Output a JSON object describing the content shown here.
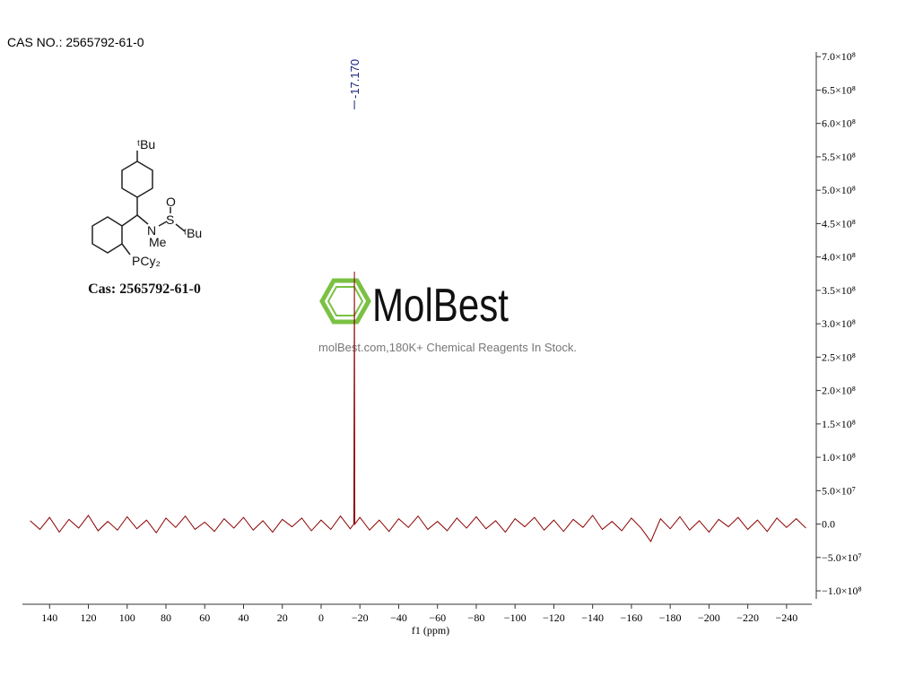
{
  "header": "CAS NO.: 2565792-61-0",
  "watermark": {
    "brand": "MolBest",
    "tagline": "molBest.com,180K+ Chemical Reagents In Stock."
  },
  "structure": {
    "labels": [
      "ᵗBu",
      "O",
      "S",
      "N",
      "Me",
      "ᵗBu",
      "PCy₂"
    ],
    "caption": "Cas: 2565792-61-0"
  },
  "chart_data": {
    "type": "line",
    "x_label": "f1 (ppm)",
    "annotations": [
      {
        "x": -17.17,
        "text": "-17.170"
      }
    ],
    "x": [
      150,
      145,
      140,
      135,
      130,
      125,
      120,
      115,
      110,
      105,
      100,
      95,
      90,
      85,
      80,
      75,
      70,
      65,
      60,
      55,
      50,
      45,
      40,
      35,
      30,
      25,
      20,
      15,
      10,
      5,
      0,
      -5,
      -10,
      -15,
      -16.9,
      -17.17,
      -17.4,
      -20,
      -25,
      -30,
      -35,
      -40,
      -45,
      -50,
      -55,
      -60,
      -65,
      -70,
      -75,
      -80,
      -85,
      -90,
      -95,
      -100,
      -105,
      -110,
      -115,
      -120,
      -125,
      -130,
      -135,
      -140,
      -145,
      -150,
      -155,
      -160,
      -165,
      -170,
      -175,
      -180,
      -185,
      -190,
      -195,
      -200,
      -205,
      -210,
      -215,
      -220,
      -225,
      -230,
      -235,
      -240,
      -245,
      -250
    ],
    "series": [
      {
        "color": "#8b0000",
        "values": [
          5000000.0,
          -8000000.0,
          10000000.0,
          -12000000.0,
          7000000.0,
          -6000000.0,
          13000000.0,
          -10000000.0,
          4000000.0,
          -9000000.0,
          11000000.0,
          -7000000.0,
          6000000.0,
          -13000000.0,
          9000000.0,
          -5000000.0,
          12000000.0,
          -8000000.0,
          3000000.0,
          -11000000.0,
          8000000.0,
          -6000000.0,
          10000000.0,
          -9000000.0,
          5000000.0,
          -12000000.0,
          7000000.0,
          -4000000.0,
          9000000.0,
          -10000000.0,
          6000000.0,
          -8000000.0,
          12000000.0,
          -7000000.0,
          0,
          378000000.0,
          0,
          10000000.0,
          -9000000.0,
          6000000.0,
          -11000000.0,
          8000000.0,
          -5000000.0,
          12000000.0,
          -8000000.0,
          4000000.0,
          -10000000.0,
          9000000.0,
          -6000000.0,
          11000000.0,
          -7000000.0,
          5000000.0,
          -12000000.0,
          8000000.0,
          -4000000.0,
          10000000.0,
          -9000000.0,
          6000000.0,
          -11000000.0,
          7000000.0,
          -5000000.0,
          13000000.0,
          -8000000.0,
          4000000.0,
          -10000000.0,
          9000000.0,
          -6000000.0,
          -26000000.0,
          8000000.0,
          -7000000.0,
          11000000.0,
          -9000000.0,
          5000000.0,
          -12000000.0,
          7000000.0,
          -4000000.0,
          10000000.0,
          -8000000.0,
          6000000.0,
          -11000000.0,
          9000000.0,
          -5000000.0,
          8000000.0,
          -6000000.0
        ]
      }
    ],
    "xlim": [
      154,
      -253
    ],
    "xticks": [
      140,
      120,
      100,
      80,
      60,
      40,
      20,
      0,
      {
        "value": -20,
        "label": "−20"
      },
      {
        "value": -40,
        "label": "−40"
      },
      {
        "value": -60,
        "label": "−60"
      },
      {
        "value": -80,
        "label": "−80"
      },
      {
        "value": -100,
        "label": "−100"
      },
      {
        "value": -120,
        "label": "−120"
      },
      {
        "value": -140,
        "label": "−140"
      },
      {
        "value": -160,
        "label": "−160"
      },
      {
        "value": -180,
        "label": "−180"
      },
      {
        "value": -200,
        "label": "−200"
      },
      {
        "value": -220,
        "label": "−220"
      },
      {
        "value": -240,
        "label": "−240"
      }
    ],
    "ylim": [
      -112000000.0,
      707000000.0
    ],
    "yticks": [
      {
        "value": 700000000.0,
        "label": "7.0×10⁸"
      },
      {
        "value": 650000000.0,
        "label": "6.5×10⁸"
      },
      {
        "value": 600000000.0,
        "label": "6.0×10⁸"
      },
      {
        "value": 550000000.0,
        "label": "5.5×10⁸"
      },
      {
        "value": 500000000.0,
        "label": "5.0×10⁸"
      },
      {
        "value": 450000000.0,
        "label": "4.5×10⁸"
      },
      {
        "value": 400000000.0,
        "label": "4.0×10⁸"
      },
      {
        "value": 350000000.0,
        "label": "3.5×10⁸"
      },
      {
        "value": 300000000.0,
        "label": "3.0×10⁸"
      },
      {
        "value": 250000000.0,
        "label": "2.5×10⁸"
      },
      {
        "value": 200000000.0,
        "label": "2.0×10⁸"
      },
      {
        "value": 150000000.0,
        "label": "1.5×10⁸"
      },
      {
        "value": 100000000.0,
        "label": "1.0×10⁸"
      },
      {
        "value": 50000000.0,
        "label": "5.0×10⁷"
      },
      {
        "value": 0,
        "label": "0.0"
      },
      {
        "value": -50000000.0,
        "label": "−5.0×10⁷"
      },
      {
        "value": -100000000.0,
        "label": "−1.0×10⁸"
      }
    ]
  }
}
